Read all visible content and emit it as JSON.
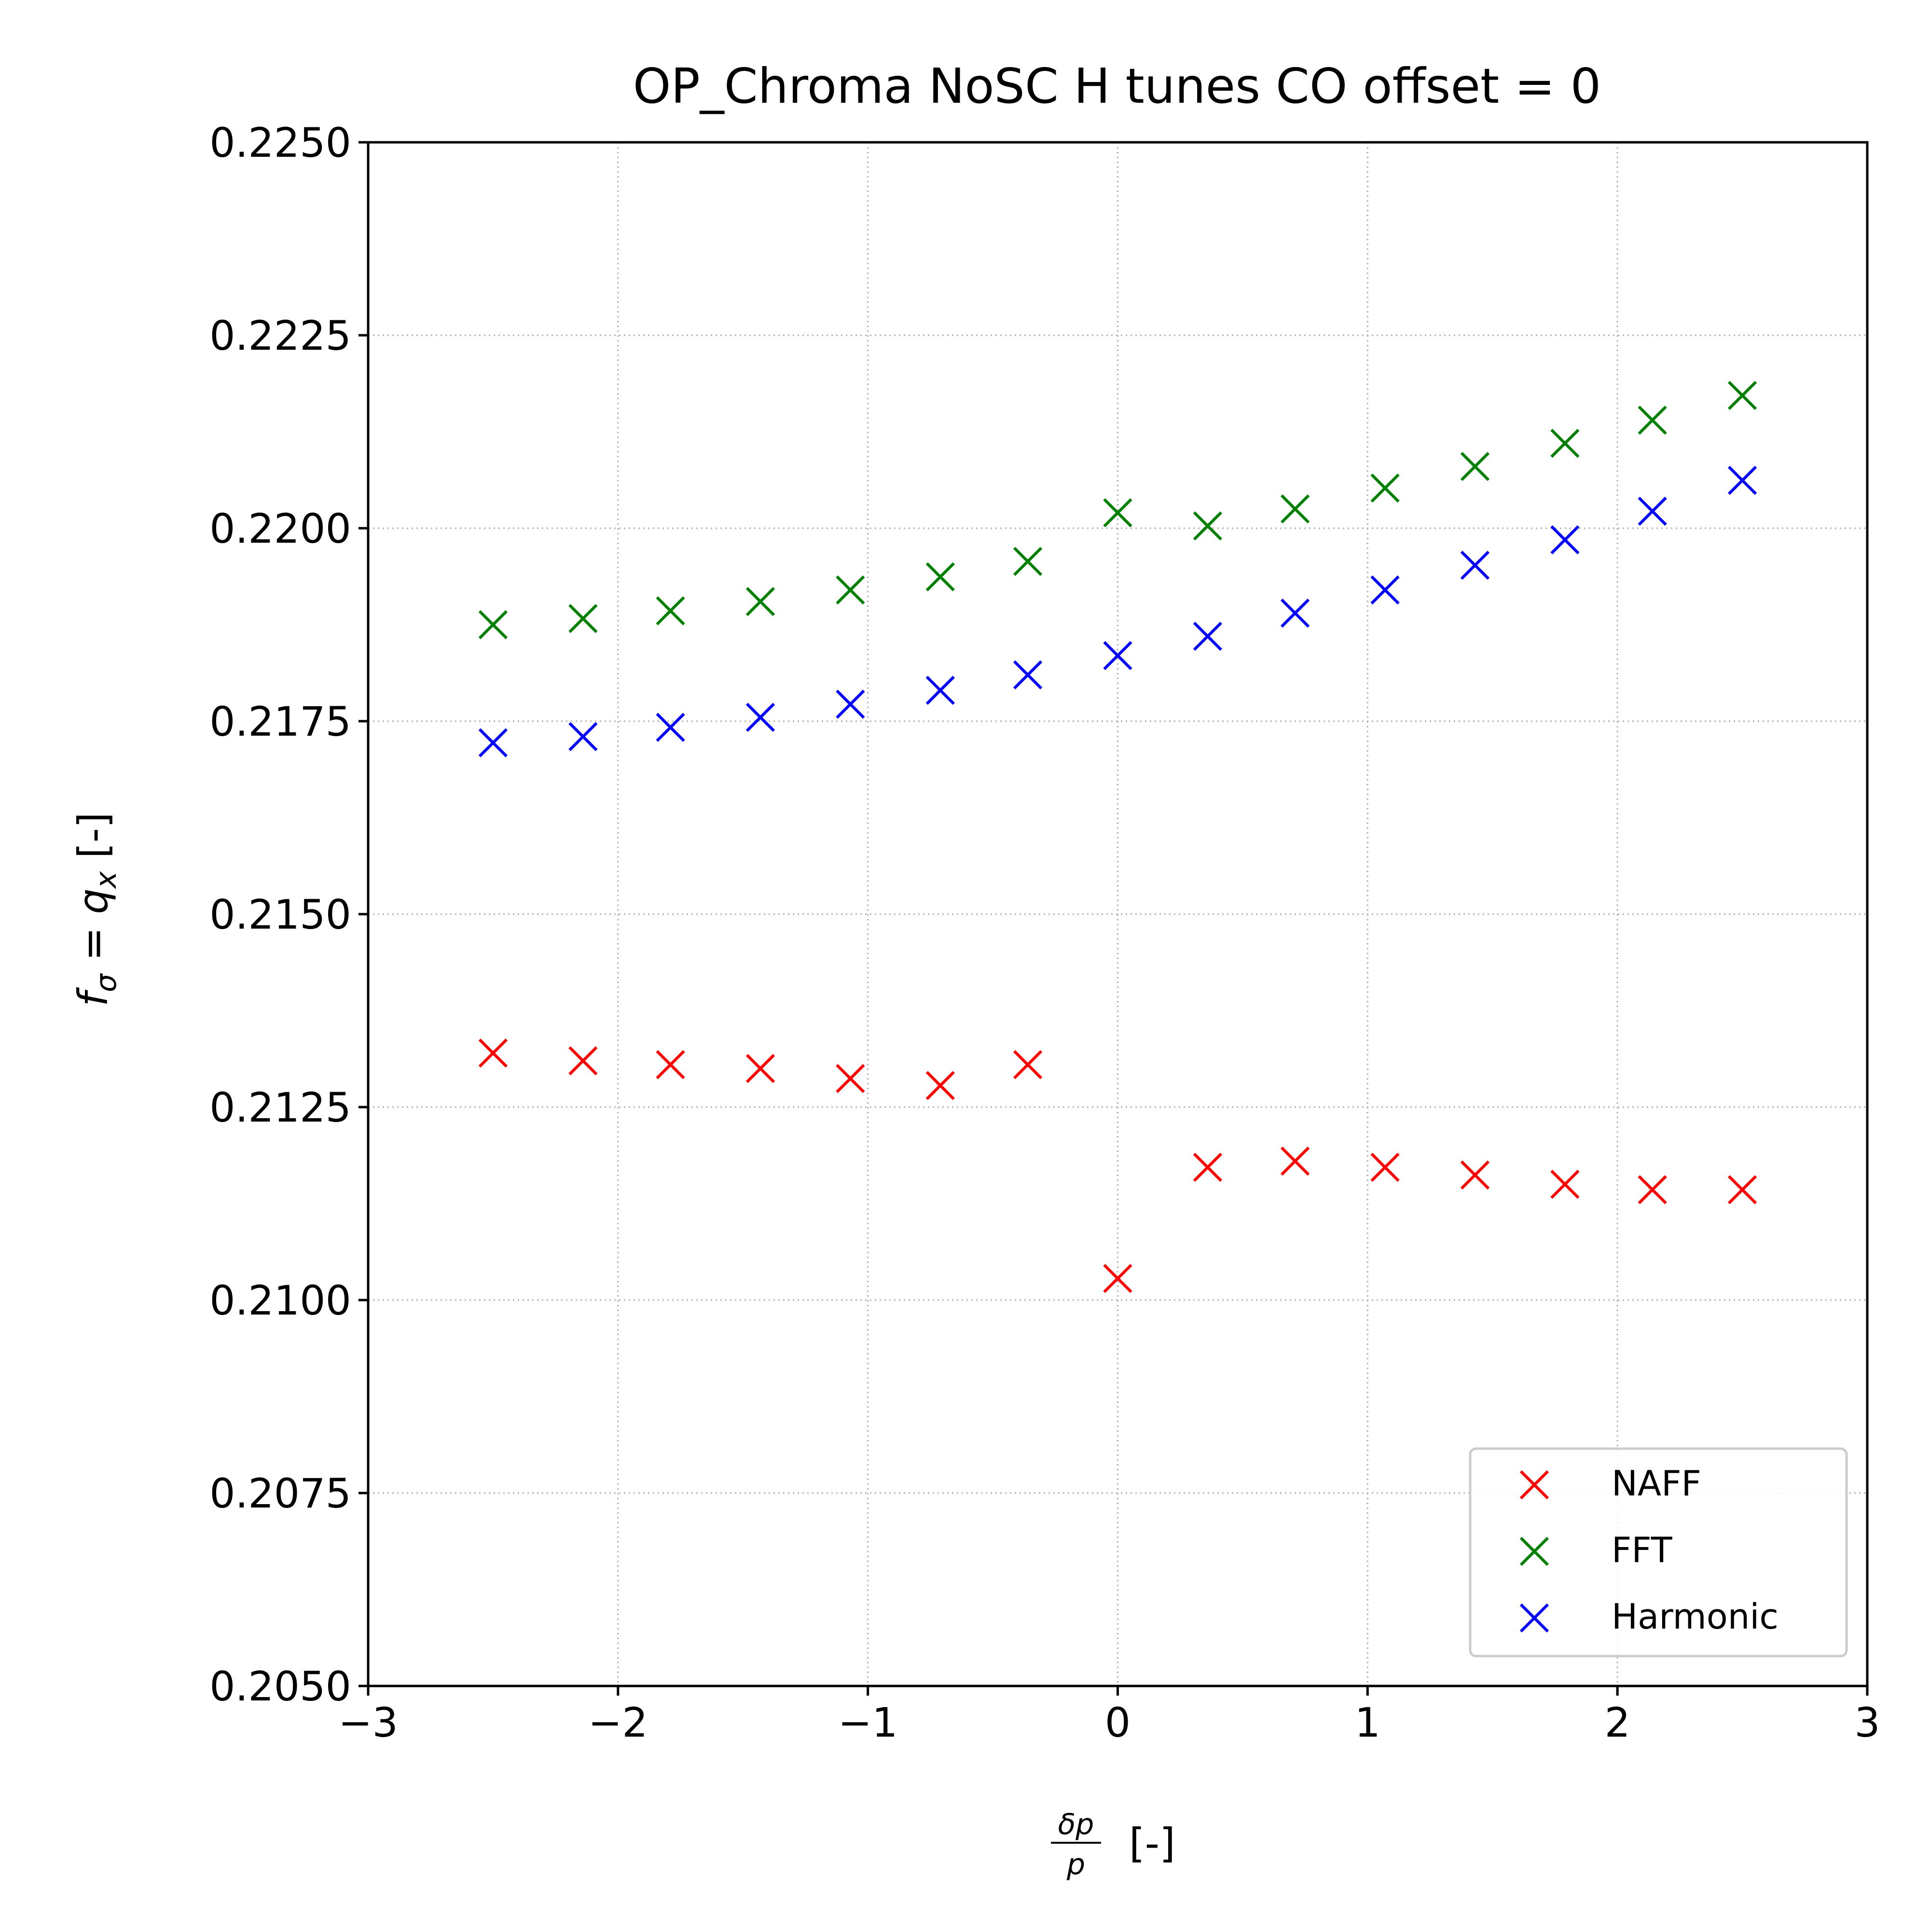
{
  "chart_data": {
    "type": "scatter",
    "title": "OP_Chroma NoSC H tunes CO offset = 0",
    "xlabel": {
      "frac_num": "δp",
      "frac_den": "p",
      "suffix": "[-]"
    },
    "ylabel": {
      "f": "f",
      "sub": "σ",
      "eq": " = ",
      "q": "q",
      "qsub": "x",
      "suffix": " [-]"
    },
    "xlim": [
      -3,
      3
    ],
    "ylim": [
      0.205,
      0.225
    ],
    "xticks": [
      -3,
      -2,
      -1,
      0,
      1,
      2,
      3
    ],
    "xtick_labels": [
      "−3",
      "−2",
      "−1",
      "0",
      "1",
      "2",
      "3"
    ],
    "yticks": [
      0.205,
      0.2075,
      0.21,
      0.2125,
      0.215,
      0.2175,
      0.22,
      0.2225,
      0.225
    ],
    "ytick_labels": [
      "0.2050",
      "0.2075",
      "0.2100",
      "0.2125",
      "0.2150",
      "0.2175",
      "0.2200",
      "0.2225",
      "0.2250"
    ],
    "grid": true,
    "legend_position": "lower-right",
    "x": [
      -2.5,
      -2.14,
      -1.79,
      -1.43,
      -1.07,
      -0.71,
      -0.36,
      0,
      0.36,
      0.71,
      1.07,
      1.43,
      1.79,
      2.14,
      2.5
    ],
    "series": [
      {
        "name": "NAFF",
        "color": "#ff0000",
        "marker": "x",
        "values": [
          0.2132,
          0.2131,
          0.21305,
          0.213,
          0.21287,
          0.21278,
          0.21305,
          0.21028,
          0.21172,
          0.2118,
          0.21172,
          0.21162,
          0.2115,
          0.21143,
          0.21143
        ]
      },
      {
        "name": "FFT",
        "color": "#008000",
        "marker": "x",
        "values": [
          0.21875,
          0.21883,
          0.21893,
          0.21905,
          0.2192,
          0.21937,
          0.21957,
          0.2202,
          0.22003,
          0.22025,
          0.22052,
          0.2208,
          0.2211,
          0.2214,
          0.22172
        ]
      },
      {
        "name": "Harmonic",
        "color": "#0000ff",
        "marker": "x",
        "values": [
          0.21722,
          0.2173,
          0.21742,
          0.21755,
          0.21772,
          0.2179,
          0.2181,
          0.21835,
          0.2186,
          0.2189,
          0.2192,
          0.21952,
          0.21985,
          0.22022,
          0.22062
        ]
      }
    ]
  }
}
